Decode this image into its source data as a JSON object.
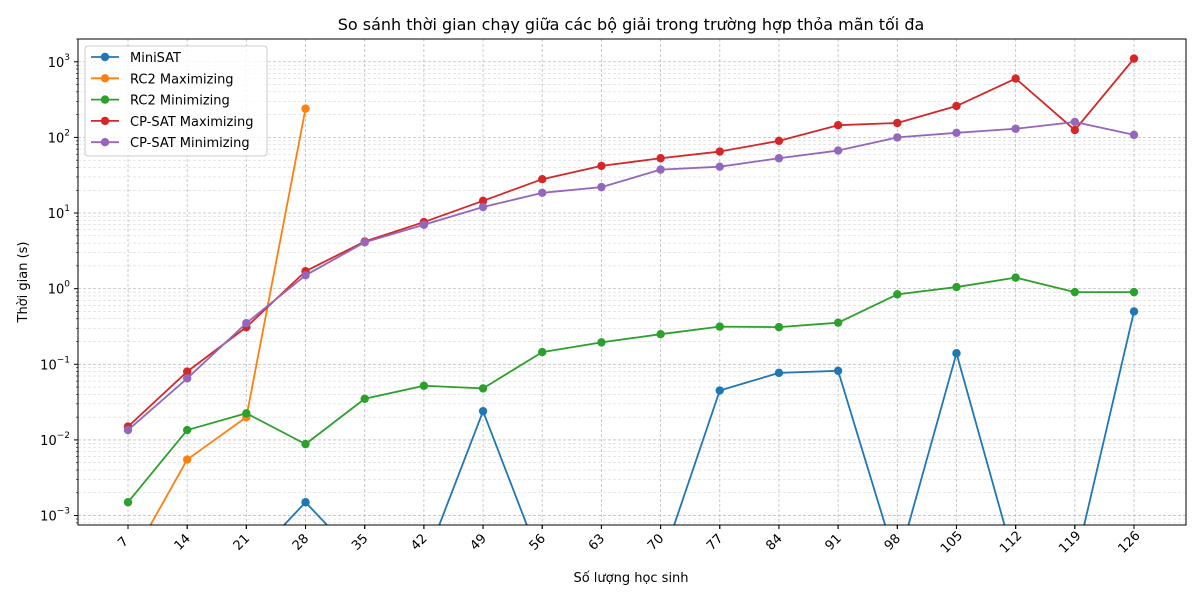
{
  "chart_data": {
    "type": "line",
    "title": "So sánh thời gian chạy giữa các bộ giải trong trường hợp thỏa mãn tối đa",
    "xlabel": "Số lượng học sinh",
    "ylabel": "Thời gian (s)",
    "x": [
      7,
      14,
      21,
      28,
      35,
      42,
      49,
      56,
      63,
      70,
      77,
      84,
      91,
      98,
      105,
      112,
      119,
      126
    ],
    "yscale": "log",
    "ylim": [
      0.00075,
      2000
    ],
    "grid": true,
    "legend_position": "top-left",
    "y_tick_labels": [
      {
        "base": "10",
        "exp": "−3",
        "value": 0.001
      },
      {
        "base": "10",
        "exp": "−2",
        "value": 0.01
      },
      {
        "base": "10",
        "exp": "−1",
        "value": 0.1
      },
      {
        "base": "10",
        "exp": "0",
        "value": 1
      },
      {
        "base": "10",
        "exp": "1",
        "value": 10
      },
      {
        "base": "10",
        "exp": "2",
        "value": 100
      },
      {
        "base": "10",
        "exp": "3",
        "value": 1000
      }
    ],
    "series": [
      {
        "name": "MiniSAT",
        "color": "#1f77b4",
        "values": [
          0,
          0,
          0,
          0.0015,
          0,
          0,
          0.024,
          0,
          0,
          0,
          0.045,
          0.077,
          0.082,
          0,
          0.14,
          0,
          0,
          0.5
        ]
      },
      {
        "name": "RC2 Maximizing",
        "color": "#ff7f0e",
        "values": [
          0,
          0.0055,
          0.02,
          240,
          null,
          null,
          null,
          null,
          null,
          null,
          null,
          null,
          null,
          null,
          null,
          null,
          null,
          null
        ]
      },
      {
        "name": "RC2 Minimizing",
        "color": "#2ca02c",
        "values": [
          0.0015,
          0.0135,
          0.0225,
          0.0088,
          0.035,
          0.052,
          0.048,
          0.145,
          0.195,
          0.25,
          0.315,
          0.31,
          0.355,
          0.84,
          1.05,
          1.4,
          0.9,
          0.9
        ]
      },
      {
        "name": "CP-SAT Maximizing",
        "color": "#d62728",
        "values": [
          0.015,
          0.08,
          0.31,
          1.7,
          4.2,
          7.6,
          14.5,
          28,
          42,
          53,
          65,
          90,
          145,
          155,
          260,
          600,
          125,
          1100
        ]
      },
      {
        "name": "CP-SAT Minimizing",
        "color": "#9467bd",
        "values": [
          0.0135,
          0.065,
          0.35,
          1.5,
          4.1,
          7.0,
          12,
          18.5,
          22,
          37.5,
          41,
          53,
          67,
          100,
          115,
          130,
          160,
          108
        ]
      }
    ]
  }
}
